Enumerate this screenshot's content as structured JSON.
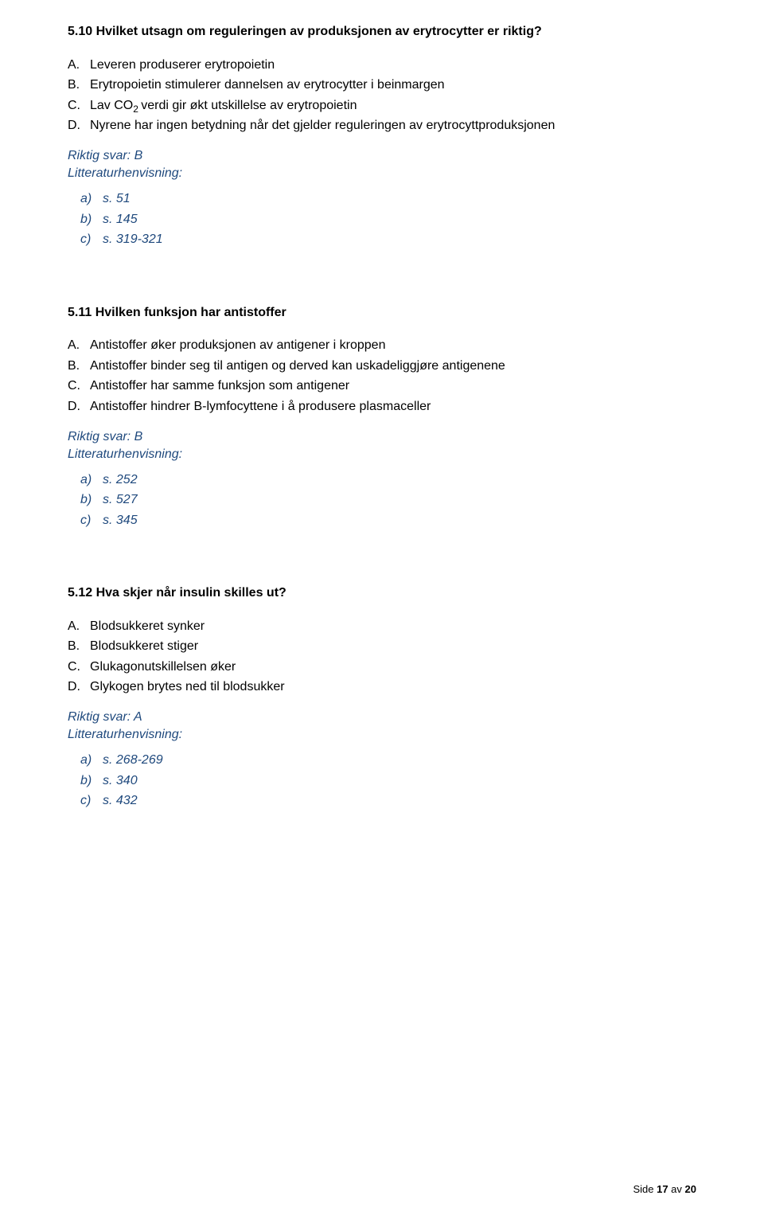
{
  "questions": [
    {
      "title": "5.10 Hvilket utsagn om reguleringen av produksjonen av erytrocytter er riktig?",
      "options": [
        {
          "letter": "A.",
          "text": "Leveren produserer erytropoietin"
        },
        {
          "letter": "B.",
          "text": "Erytropoietin stimulerer dannelsen av erytrocytter i beinmargen"
        },
        {
          "letter": "C.",
          "text": "Lav CO₂ verdi gir økt utskillelse av erytropoietin",
          "sub": true
        },
        {
          "letter": "D.",
          "text": "Nyrene har ingen betydning når det gjelder reguleringen av erytrocyttproduksjonen"
        }
      ],
      "answer": "Riktig svar: B",
      "refs_label": "Litteraturhenvisning:",
      "refs": [
        {
          "letter": "a)",
          "text": "s. 51"
        },
        {
          "letter": "b)",
          "text": "s. 145"
        },
        {
          "letter": "c)",
          "text": "s. 319-321"
        }
      ]
    },
    {
      "title": "5.11 Hvilken funksjon har antistoffer",
      "options": [
        {
          "letter": "A.",
          "text": "Antistoffer øker produksjonen av antigener i kroppen"
        },
        {
          "letter": "B.",
          "text": "Antistoffer binder seg til antigen og derved kan uskadeliggjøre antigenene"
        },
        {
          "letter": "C.",
          "text": "Antistoffer har samme funksjon som antigener"
        },
        {
          "letter": "D.",
          "text": "Antistoffer hindrer B-lymfocyttene i å produsere plasmaceller"
        }
      ],
      "answer": "Riktig svar: B",
      "refs_label": "Litteraturhenvisning:",
      "refs": [
        {
          "letter": "a)",
          "text": "s. 252"
        },
        {
          "letter": "b)",
          "text": "s. 527"
        },
        {
          "letter": "c)",
          "text": "s. 345"
        }
      ]
    },
    {
      "title": "5.12 Hva skjer når insulin skilles ut?",
      "options": [
        {
          "letter": "A.",
          "text": "Blodsukkeret synker"
        },
        {
          "letter": "B.",
          "text": "Blodsukkeret stiger"
        },
        {
          "letter": "C.",
          "text": "Glukagonutskillelsen øker"
        },
        {
          "letter": "D.",
          "text": "Glykogen brytes ned til blodsukker"
        }
      ],
      "answer": "Riktig svar: A",
      "refs_label": "Litteraturhenvisning:",
      "refs": [
        {
          "letter": "a)",
          "text": "s. 268-269"
        },
        {
          "letter": "b)",
          "text": "s. 340"
        },
        {
          "letter": "c)",
          "text": "s. 432"
        }
      ]
    }
  ],
  "footer": {
    "prefix": "Side ",
    "page": "17",
    "middle": " av ",
    "total": "20"
  }
}
